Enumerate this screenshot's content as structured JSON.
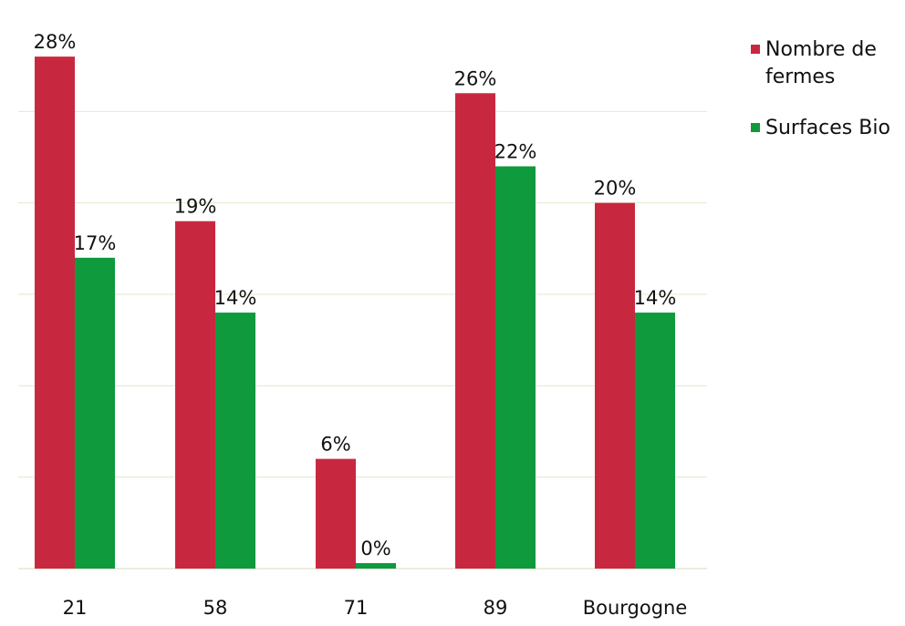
{
  "chart_data": {
    "type": "bar",
    "categories": [
      "21",
      "58",
      "71",
      "89",
      "Bourgogne"
    ],
    "series": [
      {
        "name": "Nombre de fermes",
        "color": "#c8283f",
        "values": [
          28,
          19,
          6,
          26,
          20
        ],
        "labels": [
          "28%",
          "19%",
          "6%",
          "26%",
          "20%"
        ]
      },
      {
        "name": "Surfaces Bio",
        "color": "#0f9a3d",
        "values": [
          17,
          14,
          0.3,
          22,
          14
        ],
        "labels": [
          "17%",
          "14%",
          "0%",
          "22%",
          "14%"
        ]
      }
    ],
    "ylim": [
      0,
      30
    ],
    "grid": true,
    "legend_position": "right",
    "gridline_color": "#e6e6cf"
  }
}
